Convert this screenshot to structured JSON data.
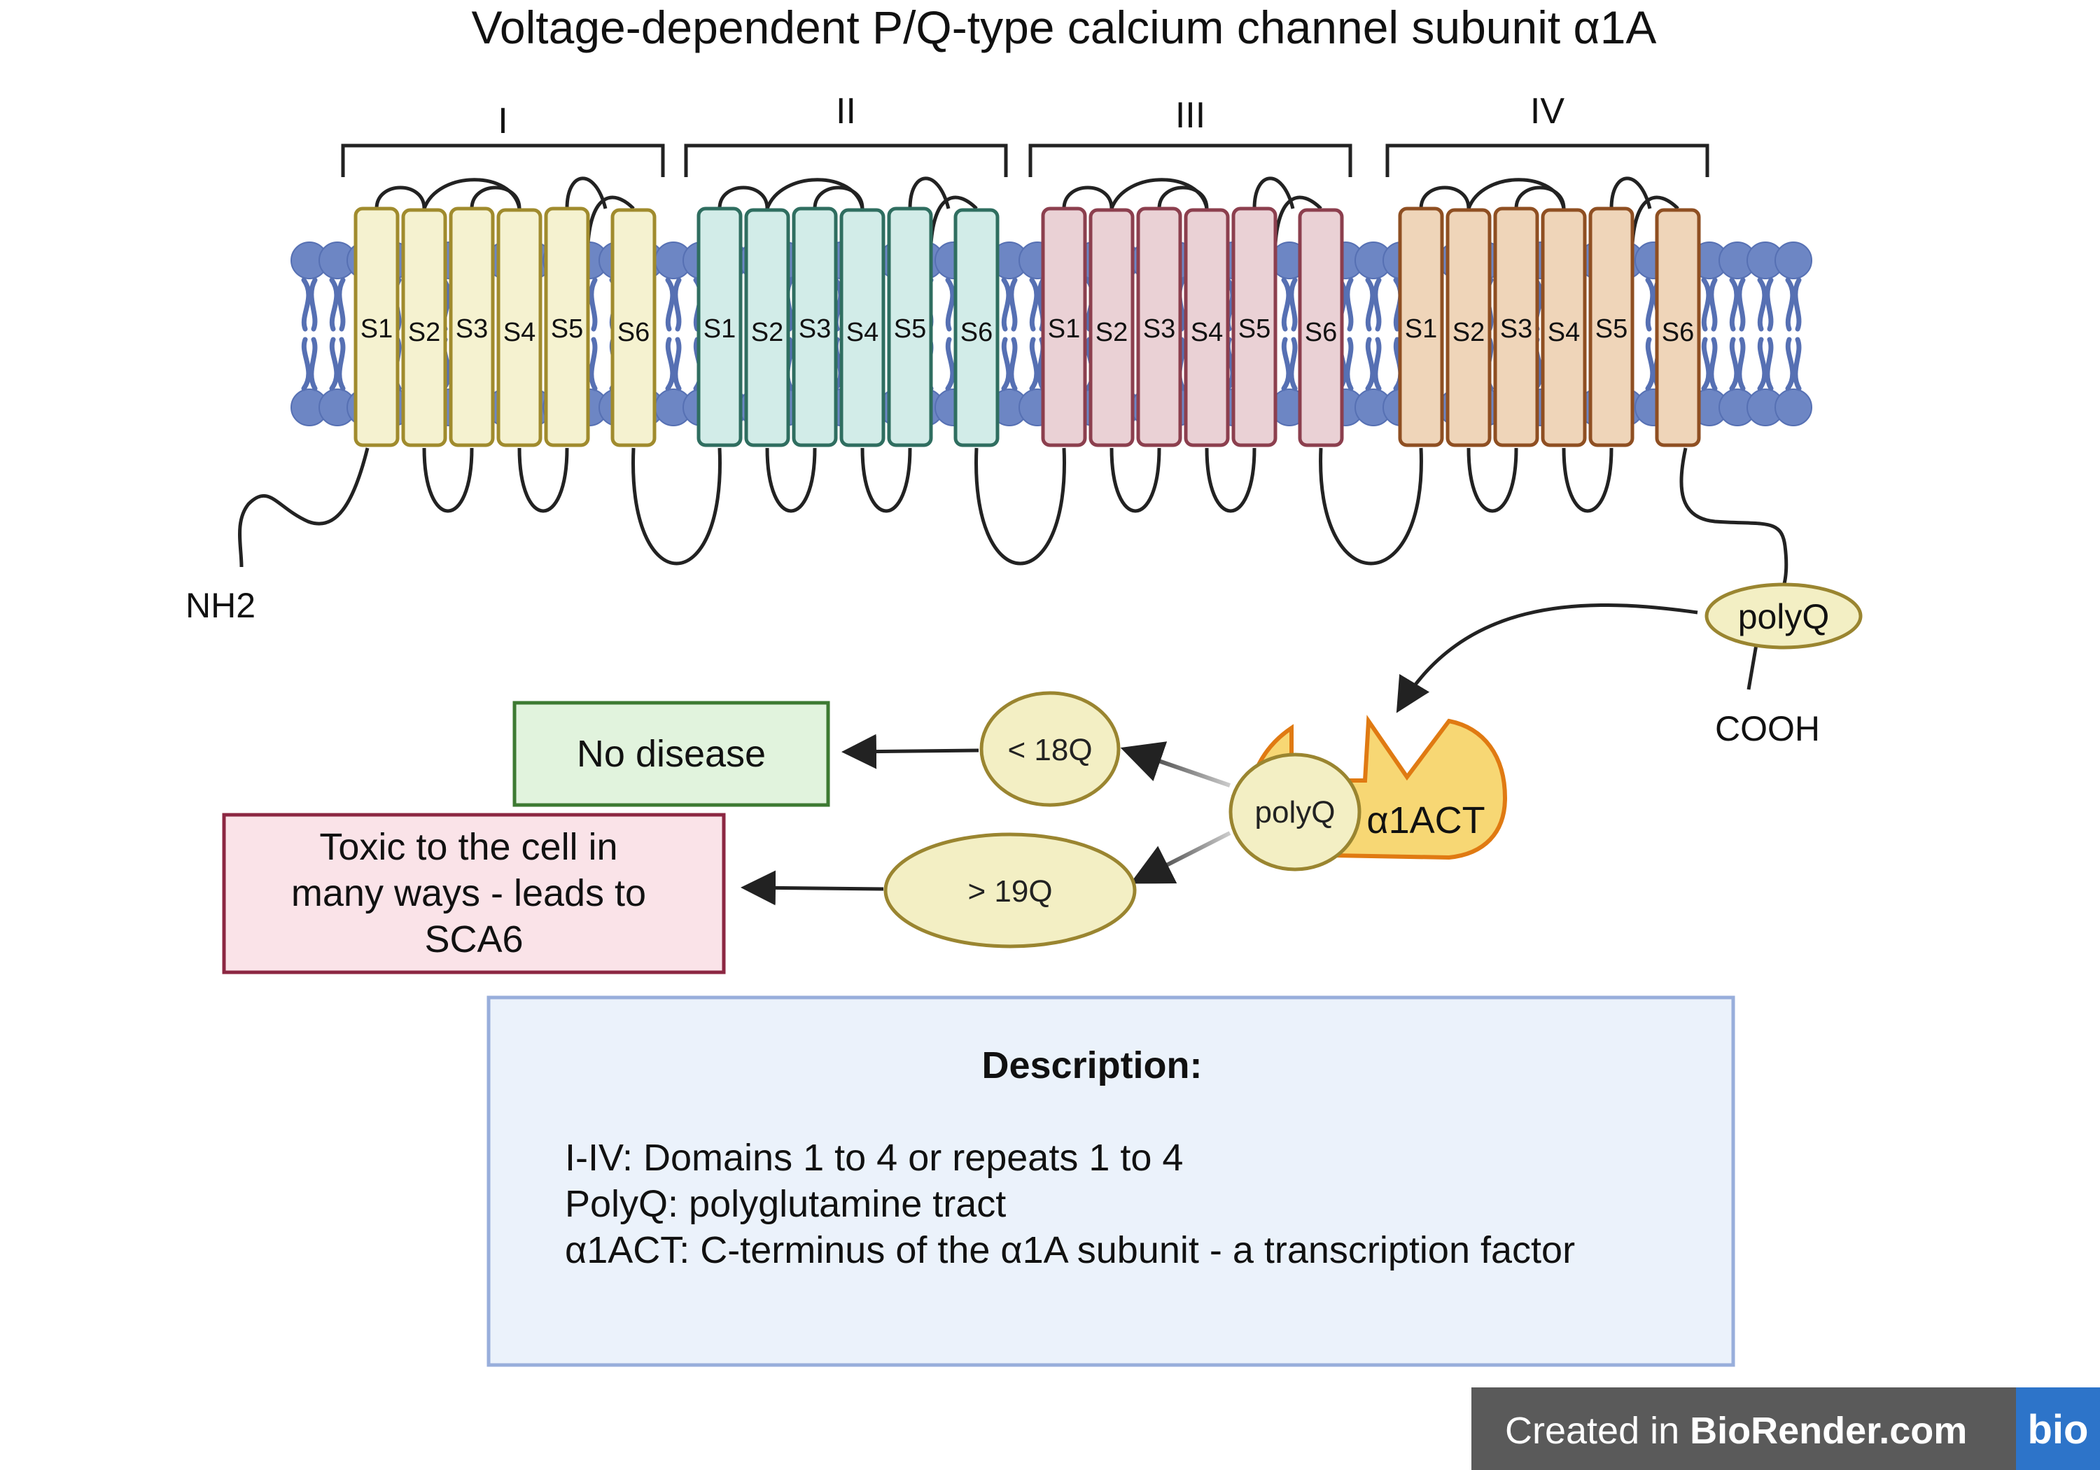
{
  "title": "Voltage-dependent P/Q-type calcium channel subunit α1A",
  "domains": [
    {
      "label": "I",
      "fill": "#f5f2d0",
      "stroke": "#a08b2d"
    },
    {
      "label": "II",
      "fill": "#d2ece8",
      "stroke": "#2f6e60"
    },
    {
      "label": "III",
      "fill": "#ead1d5",
      "stroke": "#8c3f4e"
    },
    {
      "label": "IV",
      "fill": "#efd5b9",
      "stroke": "#8f4f22"
    }
  ],
  "segment_labels": [
    "S1",
    "S2",
    "S3",
    "S4",
    "S5",
    "S6"
  ],
  "termini": {
    "n": "NH2",
    "c": "COOH"
  },
  "polyq_tail_label": "polyQ",
  "cleaved_fragment": {
    "polyq": "polyQ",
    "act": "α1ACT"
  },
  "outcomes": {
    "short": {
      "repeat": "< 18Q",
      "result": "No disease"
    },
    "long": {
      "repeat": "> 19Q",
      "result_lines": [
        "Toxic to the cell in",
        "many ways - leads to",
        "SCA6"
      ]
    }
  },
  "description": {
    "heading": "Description:",
    "lines": [
      "I-IV: Domains 1 to 4 or repeats 1 to 4",
      "PolyQ: polyglutamine tract",
      "α1ACT: C-terminus of the α1A subunit - a transcription factor"
    ]
  },
  "badge": {
    "prefix": "Created in ",
    "brand": "BioRender.com",
    "logo": "bio"
  },
  "colors": {
    "membrane": "#6d86c4",
    "polyq_fill": "#f3efc4",
    "polyq_stroke": "#9a8530",
    "act_fill": "#f7d774",
    "act_stroke": "#e07a12",
    "no_disease_fill": "#e1f3dd",
    "no_disease_stroke": "#3d7a32",
    "toxic_fill": "#fae3e8",
    "toxic_stroke": "#8c2742",
    "desc_fill": "#ebf2fb",
    "desc_stroke": "#98aedb"
  }
}
